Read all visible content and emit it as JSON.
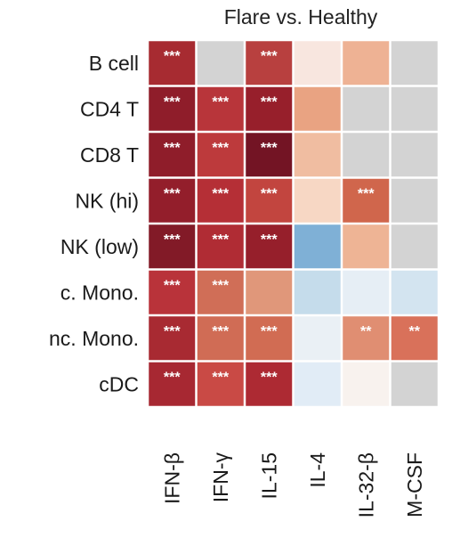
{
  "chart_data": {
    "type": "heatmap",
    "title": "Flare vs. Healthy",
    "rows": [
      "B cell",
      "CD4 T",
      "CD8 T",
      "NK (hi)",
      "NK (low)",
      "c. Mono.",
      "nc. Mono.",
      "cDC"
    ],
    "columns": [
      "IFN-β",
      "IFN-γ",
      "IL-15",
      "IL-4",
      "IL-32-β",
      "M-CSF"
    ],
    "cells": [
      [
        {
          "color": "#a72b31",
          "sig": "***"
        },
        {
          "color": "#d3d3d3",
          "sig": ""
        },
        {
          "color": "#b8403f",
          "sig": "***"
        },
        {
          "color": "#f8e6df",
          "sig": ""
        },
        {
          "color": "#eeb294",
          "sig": ""
        },
        {
          "color": "#d3d3d3",
          "sig": ""
        }
      ],
      [
        {
          "color": "#8f1d2a",
          "sig": "***"
        },
        {
          "color": "#b8353a",
          "sig": "***"
        },
        {
          "color": "#971f2b",
          "sig": "***"
        },
        {
          "color": "#e9a382",
          "sig": ""
        },
        {
          "color": "#d3d3d3",
          "sig": ""
        },
        {
          "color": "#d3d3d3",
          "sig": ""
        }
      ],
      [
        {
          "color": "#8f1d2a",
          "sig": "***"
        },
        {
          "color": "#bd3a3c",
          "sig": "***"
        },
        {
          "color": "#731424",
          "sig": "***"
        },
        {
          "color": "#f0bda1",
          "sig": ""
        },
        {
          "color": "#d3d3d3",
          "sig": ""
        },
        {
          "color": "#d3d3d3",
          "sig": ""
        }
      ],
      [
        {
          "color": "#931e2b",
          "sig": "***"
        },
        {
          "color": "#b52f36",
          "sig": "***"
        },
        {
          "color": "#c2453f",
          "sig": "***"
        },
        {
          "color": "#f7d7c4",
          "sig": ""
        },
        {
          "color": "#d0664c",
          "sig": "***"
        },
        {
          "color": "#d3d3d3",
          "sig": ""
        }
      ],
      [
        {
          "color": "#821a27",
          "sig": "***"
        },
        {
          "color": "#b02c34",
          "sig": "***"
        },
        {
          "color": "#961f2b",
          "sig": "***"
        },
        {
          "color": "#7fb0d6",
          "sig": ""
        },
        {
          "color": "#eeb495",
          "sig": ""
        },
        {
          "color": "#d3d3d3",
          "sig": ""
        }
      ],
      [
        {
          "color": "#b9333a",
          "sig": "***"
        },
        {
          "color": "#d06e57",
          "sig": "***"
        },
        {
          "color": "#e0977a",
          "sig": ""
        },
        {
          "color": "#c5dceb",
          "sig": ""
        },
        {
          "color": "#e6eef5",
          "sig": ""
        },
        {
          "color": "#d3e4f0",
          "sig": ""
        }
      ],
      [
        {
          "color": "#a82a32",
          "sig": "***"
        },
        {
          "color": "#d06c55",
          "sig": "***"
        },
        {
          "color": "#d16c53",
          "sig": "***"
        },
        {
          "color": "#eaf0f5",
          "sig": ""
        },
        {
          "color": "#e08e72",
          "sig": "**"
        },
        {
          "color": "#d9715a",
          "sig": "**"
        }
      ],
      [
        {
          "color": "#a72832",
          "sig": "***"
        },
        {
          "color": "#c94a45",
          "sig": "***"
        },
        {
          "color": "#ad2a33",
          "sig": "***"
        },
        {
          "color": "#e1ecf6",
          "sig": ""
        },
        {
          "color": "#f8f2ee",
          "sig": ""
        },
        {
          "color": "#d3d3d3",
          "sig": ""
        }
      ]
    ]
  }
}
